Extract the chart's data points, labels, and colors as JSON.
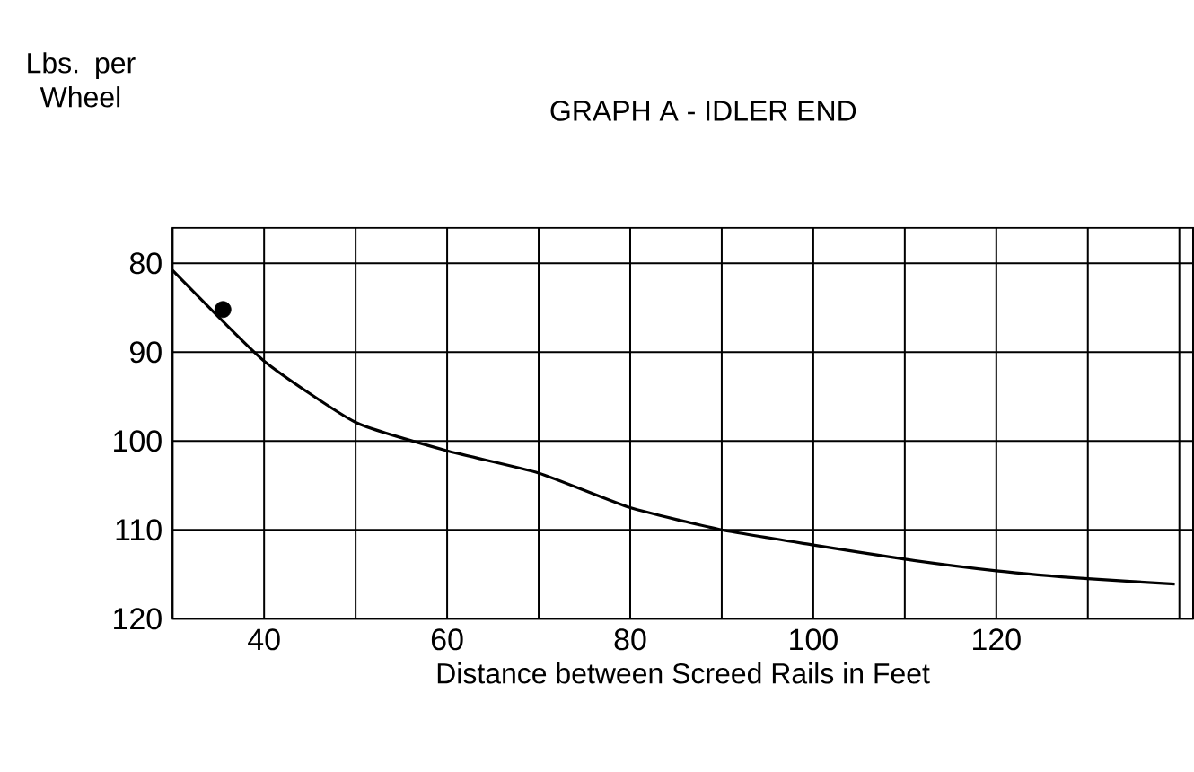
{
  "chart_data": {
    "type": "line",
    "title": "GRAPH A - IDLER END",
    "xlabel": "Distance between Screed Rails in Feet",
    "ylabel": "Lbs. per Wheel",
    "xlim": [
      30,
      141.5
    ],
    "ylim": [
      120,
      76
    ],
    "xticks": [
      {
        "value": 30,
        "label": null
      },
      40,
      {
        "value": 50,
        "label": null
      },
      60,
      {
        "value": 70,
        "label": null
      },
      80,
      {
        "value": 90,
        "label": null
      },
      100,
      {
        "value": 110,
        "label": null
      },
      120,
      {
        "value": 130,
        "label": null
      },
      {
        "value": 140,
        "label": null
      }
    ],
    "yticks": [
      80,
      90,
      100,
      110,
      120
    ],
    "grid": true,
    "series": [
      {
        "type": "line",
        "color": "#000000",
        "x": [
          30,
          40,
          50,
          60,
          70,
          80,
          90,
          100,
          110,
          120,
          130,
          139.5
        ],
        "values": [
          80.8,
          91,
          97.9,
          101.1,
          103.6,
          107.5,
          110,
          111.7,
          113.3,
          114.6,
          115.5,
          116.1
        ]
      },
      {
        "type": "scatter",
        "color": "#000000",
        "marker": "circle",
        "x": [
          35.5
        ],
        "values": [
          85.2
        ]
      }
    ]
  }
}
